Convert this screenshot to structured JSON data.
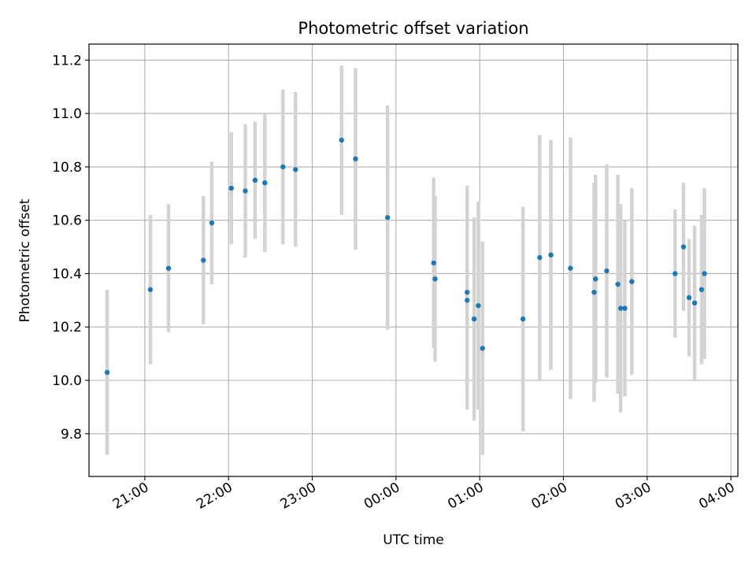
{
  "chart_data": {
    "type": "scatter",
    "title": "Photometric offset variation",
    "xlabel": "UTC time",
    "ylabel": "Photometric offset",
    "x_tick_labels": [
      "21:00",
      "22:00",
      "23:00",
      "00:00",
      "01:00",
      "02:00",
      "03:00",
      "04:00"
    ],
    "y_tick_labels": [
      "9.8",
      "10.0",
      "10.2",
      "10.4",
      "10.6",
      "10.8",
      "11.0",
      "11.2"
    ],
    "xlim": [
      "20:20",
      "04:05"
    ],
    "ylim": [
      9.64,
      11.26
    ],
    "grid": true,
    "colors": {
      "point": "#1f77b4",
      "errorbar": "#d3d3d3",
      "grid": "#b0b0b0"
    },
    "points": [
      {
        "t": "20:33",
        "y": 10.03,
        "err": 0.31
      },
      {
        "t": "21:04",
        "y": 10.34,
        "err": 0.28
      },
      {
        "t": "21:17",
        "y": 10.42,
        "err": 0.24
      },
      {
        "t": "21:42",
        "y": 10.45,
        "err": 0.24
      },
      {
        "t": "21:48",
        "y": 10.59,
        "err": 0.23
      },
      {
        "t": "22:02",
        "y": 10.72,
        "err": 0.21
      },
      {
        "t": "22:12",
        "y": 10.71,
        "err": 0.25
      },
      {
        "t": "22:19",
        "y": 10.75,
        "err": 0.22
      },
      {
        "t": "22:26",
        "y": 10.74,
        "err": 0.26
      },
      {
        "t": "22:39",
        "y": 10.8,
        "err": 0.29
      },
      {
        "t": "22:48",
        "y": 10.79,
        "err": 0.29
      },
      {
        "t": "23:21",
        "y": 10.9,
        "err": 0.28
      },
      {
        "t": "23:31",
        "y": 10.83,
        "err": 0.34
      },
      {
        "t": "23:54",
        "y": 10.61,
        "err": 0.42
      },
      {
        "t": "00:27",
        "y": 10.44,
        "err": 0.32
      },
      {
        "t": "00:28",
        "y": 10.38,
        "err": 0.31
      },
      {
        "t": "00:51",
        "y": 10.33,
        "err": 0.4
      },
      {
        "t": "00:51",
        "y": 10.3,
        "err": 0.41
      },
      {
        "t": "00:56",
        "y": 10.23,
        "err": 0.38
      },
      {
        "t": "00:59",
        "y": 10.28,
        "err": 0.39
      },
      {
        "t": "01:02",
        "y": 10.12,
        "err": 0.4
      },
      {
        "t": "01:31",
        "y": 10.23,
        "err": 0.42
      },
      {
        "t": "01:43",
        "y": 10.46,
        "err": 0.46
      },
      {
        "t": "01:51",
        "y": 10.47,
        "err": 0.43
      },
      {
        "t": "02:05",
        "y": 10.42,
        "err": 0.49
      },
      {
        "t": "02:22",
        "y": 10.33,
        "err": 0.41
      },
      {
        "t": "02:23",
        "y": 10.38,
        "err": 0.39
      },
      {
        "t": "02:31",
        "y": 10.41,
        "err": 0.4
      },
      {
        "t": "02:39",
        "y": 10.36,
        "err": 0.41
      },
      {
        "t": "02:41",
        "y": 10.27,
        "err": 0.39
      },
      {
        "t": "02:44",
        "y": 10.27,
        "err": 0.33
      },
      {
        "t": "02:49",
        "y": 10.37,
        "err": 0.35
      },
      {
        "t": "03:20",
        "y": 10.4,
        "err": 0.24
      },
      {
        "t": "03:26",
        "y": 10.5,
        "err": 0.24
      },
      {
        "t": "03:30",
        "y": 10.31,
        "err": 0.22
      },
      {
        "t": "03:34",
        "y": 10.29,
        "err": 0.29
      },
      {
        "t": "03:39",
        "y": 10.34,
        "err": 0.28
      },
      {
        "t": "03:41",
        "y": 10.4,
        "err": 0.32
      }
    ]
  }
}
